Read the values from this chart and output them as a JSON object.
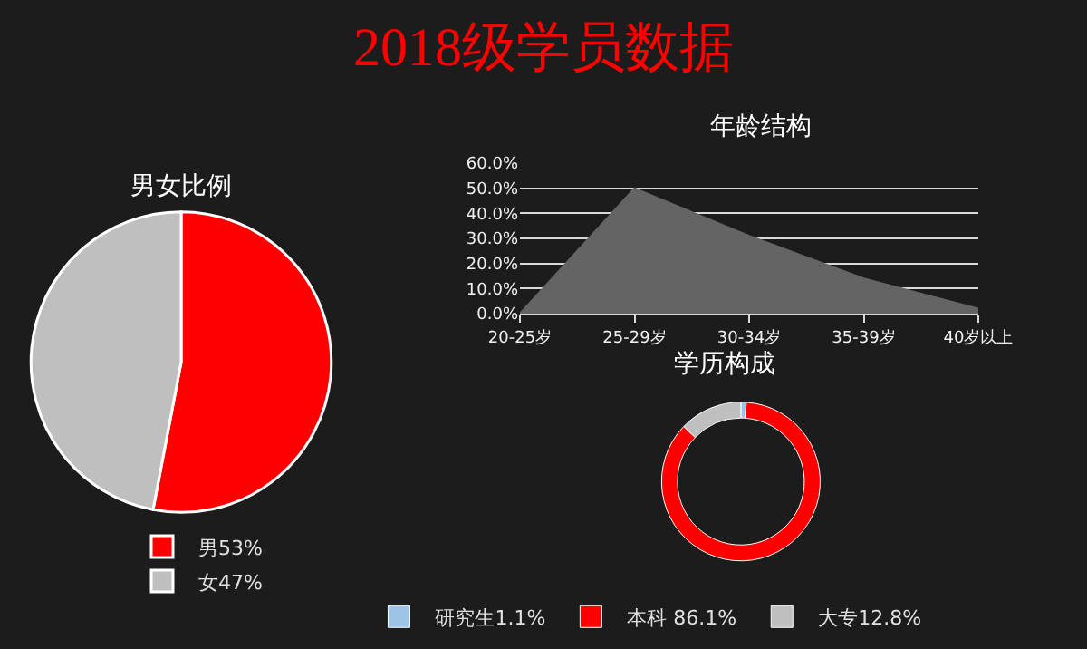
{
  "chart_data": [
    {
      "type": "other",
      "title": "2018级学员数据"
    },
    {
      "type": "pie",
      "title": "男女比例",
      "categories": [
        "男53%",
        "女47%"
      ],
      "values": [
        53,
        47
      ],
      "colors": [
        "#ff0000",
        "#bfbfbf"
      ],
      "legend": "bottom"
    },
    {
      "type": "area",
      "title": "年龄结构",
      "categories": [
        "20-25岁",
        "25-29岁",
        "30-34岁",
        "35-39岁",
        "40岁以上"
      ],
      "series": [
        {
          "color": "#646464",
          "values": [
            0,
            50,
            31,
            14,
            2
          ]
        }
      ],
      "ylim": [
        0,
        60
      ],
      "yticks": [
        {
          "value": 0,
          "label": "0.0%"
        },
        {
          "value": 10,
          "label": "10.0%"
        },
        {
          "value": 20,
          "label": "20.0%"
        },
        {
          "value": 30,
          "label": "30.0%"
        },
        {
          "value": 40,
          "label": "40.0%"
        },
        {
          "value": 50,
          "label": "50.0%"
        },
        {
          "value": 60,
          "label": "60.0%"
        }
      ],
      "grid": "y"
    },
    {
      "type": "donut",
      "title": "学历构成",
      "categories": [
        "研究生1.1%",
        "本科 86.1%",
        "大专12.8%"
      ],
      "values": [
        1.1,
        86.1,
        12.8
      ],
      "colors": [
        "#9dc3e6",
        "#ff0000",
        "#bfbfbf"
      ],
      "legend": "bottom"
    }
  ]
}
